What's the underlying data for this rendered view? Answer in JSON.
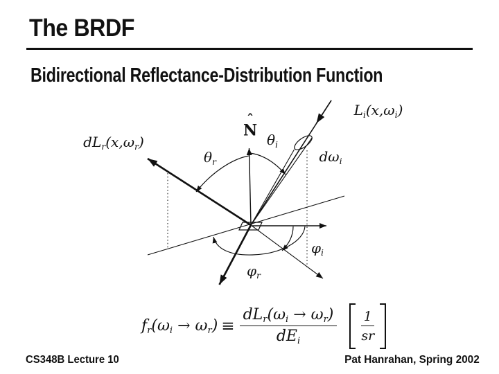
{
  "slide": {
    "title": "The BRDF",
    "subtitle": "Bidirectional Reflectance-Distribution Function",
    "footer_left": "CS348B Lecture 10",
    "footer_right": "Pat Hanrahan, Spring 2002"
  },
  "colors": {
    "ink": "#111111",
    "background": "#ffffff"
  },
  "diagram": {
    "labels": {
      "normal": {
        "hat": "ˆ",
        "base": "N"
      },
      "incident_radiance": [
        {
          "t": "L"
        },
        {
          "t": "i",
          "sub": true
        },
        {
          "t": "(x,"
        },
        {
          "t": "ω"
        },
        {
          "t": "i",
          "sub": true
        },
        {
          "t": ")"
        }
      ],
      "reflected_radiance": [
        {
          "t": "dL"
        },
        {
          "t": "r",
          "sub": true
        },
        {
          "t": "(x,"
        },
        {
          "t": "ω"
        },
        {
          "t": "r",
          "sub": true
        },
        {
          "t": ")"
        }
      ],
      "theta_i": [
        {
          "t": "θ"
        },
        {
          "t": "i",
          "sub": true
        }
      ],
      "theta_r": [
        {
          "t": "θ"
        },
        {
          "t": "r",
          "sub": true
        }
      ],
      "phi_i": [
        {
          "t": "φ"
        },
        {
          "t": "i",
          "sub": true
        }
      ],
      "phi_r": [
        {
          "t": "φ"
        },
        {
          "t": "r",
          "sub": true
        }
      ],
      "solid_angle": [
        {
          "t": "dω"
        },
        {
          "t": "i",
          "sub": true
        }
      ]
    }
  },
  "formula": {
    "lhs": [
      {
        "t": "f"
      },
      {
        "t": "r",
        "sub": true
      },
      {
        "t": "("
      },
      {
        "t": "ω"
      },
      {
        "t": "i",
        "sub": true
      },
      {
        "t": " → "
      },
      {
        "t": "ω"
      },
      {
        "t": "r",
        "sub": true
      },
      {
        "t": ")"
      }
    ],
    "equiv": "≡",
    "numerator": [
      {
        "t": "dL"
      },
      {
        "t": "r",
        "sub": true
      },
      {
        "t": "("
      },
      {
        "t": "ω"
      },
      {
        "t": "i",
        "sub": true
      },
      {
        "t": " → "
      },
      {
        "t": "ω"
      },
      {
        "t": "r",
        "sub": true
      },
      {
        "t": ")"
      }
    ],
    "denominator": [
      {
        "t": "dE"
      },
      {
        "t": "i",
        "sub": true
      }
    ],
    "units": {
      "num": "1",
      "den": "sr"
    }
  }
}
